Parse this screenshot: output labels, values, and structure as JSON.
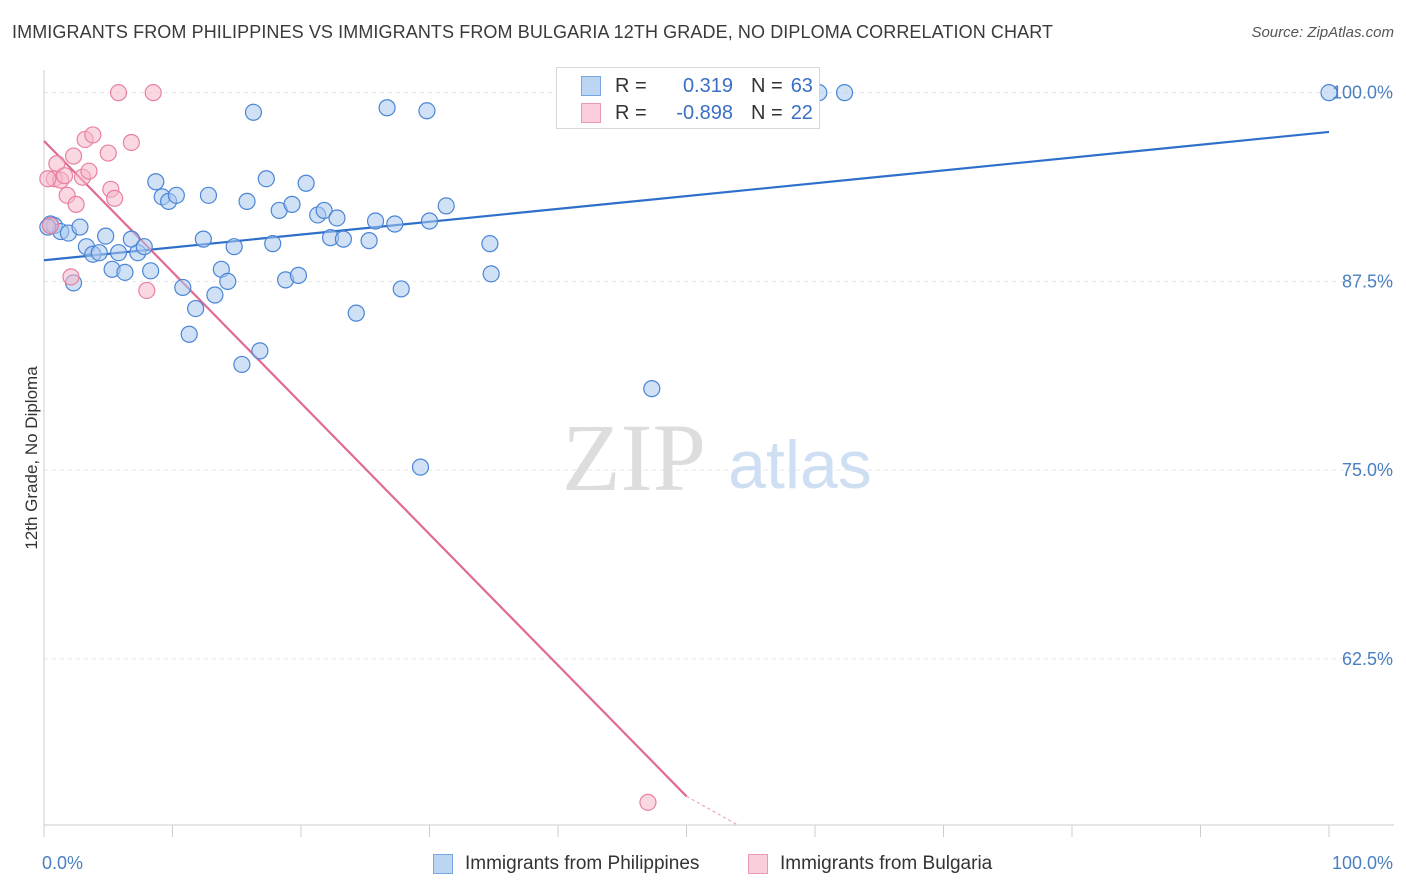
{
  "header": {
    "title": "IMMIGRANTS FROM PHILIPPINES VS IMMIGRANTS FROM BULGARIA 12TH GRADE, NO DIPLOMA CORRELATION CHART",
    "source": "Source: ZipAtlas.com"
  },
  "watermark": {
    "zip": "ZIP",
    "atlas": "atlas"
  },
  "legend": {
    "rows": [
      {
        "r_label": "R =",
        "r_value": "0.319",
        "n_label": "N =",
        "n_value": "63",
        "color": "#a9c8ef"
      },
      {
        "r_label": "R =",
        "r_value": "-0.898",
        "n_label": "N =",
        "n_value": "22",
        "color": "#f5b8cb"
      }
    ]
  },
  "chart_data": {
    "type": "scatter",
    "ylabel": "12th Grade, No Diploma",
    "xlim": [
      0,
      100
    ],
    "ylim": [
      51.5,
      101.5
    ],
    "x_tick_labels": [
      {
        "value": 0,
        "label": "0.0%"
      },
      {
        "value": 100,
        "label": "100.0%"
      }
    ],
    "y_tick_labels": [
      {
        "value": 100,
        "label": "100.0%"
      },
      {
        "value": 87.5,
        "label": "87.5%"
      },
      {
        "value": 75,
        "label": "75.0%"
      },
      {
        "value": 62.5,
        "label": "62.5%"
      }
    ],
    "grid": true,
    "series": [
      {
        "name": "Immigrants from Philippines",
        "color": "#4a85d6",
        "fill": "#a9c8ef",
        "trend": {
          "x": [
            0,
            100
          ],
          "y": [
            88.9,
            97.4
          ],
          "color": "#2f6fca"
        },
        "points": [
          [
            0.5,
            91.3
          ],
          [
            0.8,
            91.2
          ],
          [
            1.3,
            90.8
          ],
          [
            1.9,
            90.7
          ],
          [
            2.3,
            87.4
          ],
          [
            2.8,
            91.1
          ],
          [
            3.3,
            89.8
          ],
          [
            3.8,
            89.3
          ],
          [
            4.3,
            89.4
          ],
          [
            4.8,
            90.5
          ],
          [
            5.3,
            88.3
          ],
          [
            5.8,
            89.4
          ],
          [
            6.3,
            88.1
          ],
          [
            6.8,
            90.3
          ],
          [
            7.3,
            89.4
          ],
          [
            7.8,
            89.8
          ],
          [
            8.3,
            88.2
          ],
          [
            8.7,
            94.1
          ],
          [
            9.2,
            93.1
          ],
          [
            9.7,
            92.8
          ],
          [
            10.3,
            93.2
          ],
          [
            10.8,
            87.1
          ],
          [
            11.3,
            84.0
          ],
          [
            11.8,
            85.7
          ],
          [
            12.4,
            90.3
          ],
          [
            12.8,
            93.2
          ],
          [
            13.3,
            86.6
          ],
          [
            13.8,
            88.3
          ],
          [
            14.3,
            87.5
          ],
          [
            14.8,
            89.8
          ],
          [
            15.4,
            82.0
          ],
          [
            15.8,
            92.8
          ],
          [
            16.3,
            98.7
          ],
          [
            16.8,
            82.9
          ],
          [
            17.3,
            94.3
          ],
          [
            17.8,
            90.0
          ],
          [
            18.3,
            92.2
          ],
          [
            18.8,
            87.6
          ],
          [
            19.3,
            92.6
          ],
          [
            19.8,
            87.9
          ],
          [
            20.4,
            94.0
          ],
          [
            21.3,
            91.9
          ],
          [
            21.8,
            92.2
          ],
          [
            22.3,
            90.4
          ],
          [
            22.8,
            91.7
          ],
          [
            23.3,
            90.3
          ],
          [
            24.3,
            85.4
          ],
          [
            25.3,
            90.2
          ],
          [
            25.8,
            91.5
          ],
          [
            26.7,
            99.0
          ],
          [
            27.3,
            91.3
          ],
          [
            27.8,
            87.0
          ],
          [
            29.3,
            75.2
          ],
          [
            29.8,
            98.8
          ],
          [
            30.0,
            91.5
          ],
          [
            31.3,
            92.5
          ],
          [
            34.7,
            90.0
          ],
          [
            34.8,
            88.0
          ],
          [
            47.3,
            80.4
          ],
          [
            60.3,
            100.0
          ],
          [
            62.3,
            100.0
          ],
          [
            100.0,
            100.0
          ],
          [
            0.3,
            91.1
          ]
        ]
      },
      {
        "name": "Immigrants from Bulgaria",
        "color": "#e8809f",
        "fill": "#f5b8cb",
        "trend": {
          "x": [
            0,
            50
          ],
          "y": [
            96.8,
            53.4
          ],
          "dash_to": [
            54,
            50
          ],
          "color": "#e06a93"
        },
        "points": [
          [
            0.5,
            91.2
          ],
          [
            0.8,
            94.3
          ],
          [
            1.0,
            95.3
          ],
          [
            1.3,
            94.2
          ],
          [
            1.6,
            94.5
          ],
          [
            1.8,
            93.2
          ],
          [
            2.1,
            87.8
          ],
          [
            2.3,
            95.8
          ],
          [
            2.5,
            92.6
          ],
          [
            3.0,
            94.4
          ],
          [
            3.2,
            96.9
          ],
          [
            3.5,
            94.8
          ],
          [
            3.8,
            97.2
          ],
          [
            5.0,
            96.0
          ],
          [
            5.2,
            93.6
          ],
          [
            5.5,
            93.0
          ],
          [
            5.8,
            100.0
          ],
          [
            6.8,
            96.7
          ],
          [
            8.0,
            86.9
          ],
          [
            8.5,
            100.0
          ],
          [
            47.0,
            53.0
          ],
          [
            0.3,
            94.3
          ]
        ]
      }
    ]
  }
}
